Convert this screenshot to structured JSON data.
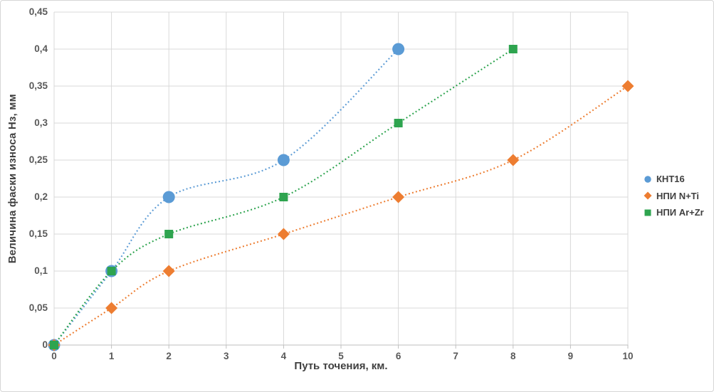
{
  "chart_data": {
    "type": "scatter",
    "title": "",
    "xlabel": "Путь точения, км.",
    "ylabel": "Величина фаски износа Нз, мм",
    "xlim": [
      0,
      10
    ],
    "ylim": [
      0,
      0.45
    ],
    "x_tick_values": [
      0,
      1,
      2,
      3,
      4,
      5,
      6,
      7,
      8,
      9,
      10
    ],
    "x_tick_labels": [
      "0",
      "1",
      "2",
      "3",
      "4",
      "5",
      "6",
      "7",
      "8",
      "9",
      "10"
    ],
    "y_tick_values": [
      0,
      0.05,
      0.1,
      0.15,
      0.2,
      0.25,
      0.3,
      0.35,
      0.4,
      0.45
    ],
    "y_tick_labels": [
      "0",
      "0,05",
      "0,1",
      "0,15",
      "0,2",
      "0,25",
      "0,3",
      "0,35",
      "0,4",
      "0,45"
    ],
    "grid": true,
    "legend_position": "right",
    "line_style": "dotted",
    "series": [
      {
        "name": "КНТ16",
        "marker": "circle",
        "color": "#5B9BD5",
        "x": [
          0,
          1,
          2,
          4,
          6
        ],
        "y": [
          0,
          0.1,
          0.2,
          0.25,
          0.4
        ]
      },
      {
        "name": "НПИ N+Ti",
        "marker": "diamond",
        "color": "#ED7D31",
        "x": [
          0,
          1,
          2,
          4,
          6,
          8,
          10
        ],
        "y": [
          0,
          0.05,
          0.1,
          0.15,
          0.2,
          0.25,
          0.35
        ]
      },
      {
        "name": "НПИ Ar+Zr",
        "marker": "square",
        "color": "#2EA44F",
        "x": [
          0,
          1,
          2,
          4,
          6,
          8
        ],
        "y": [
          0,
          0.1,
          0.15,
          0.2,
          0.3,
          0.4
        ]
      }
    ],
    "colors": {
      "grid": "#D9D9D9",
      "axis": "#BFBFBF",
      "tick_label": "#595959",
      "axis_title": "#404040",
      "legend_text": "#404040",
      "background": "#FFFFFF",
      "border": "#D6D6D6"
    }
  }
}
